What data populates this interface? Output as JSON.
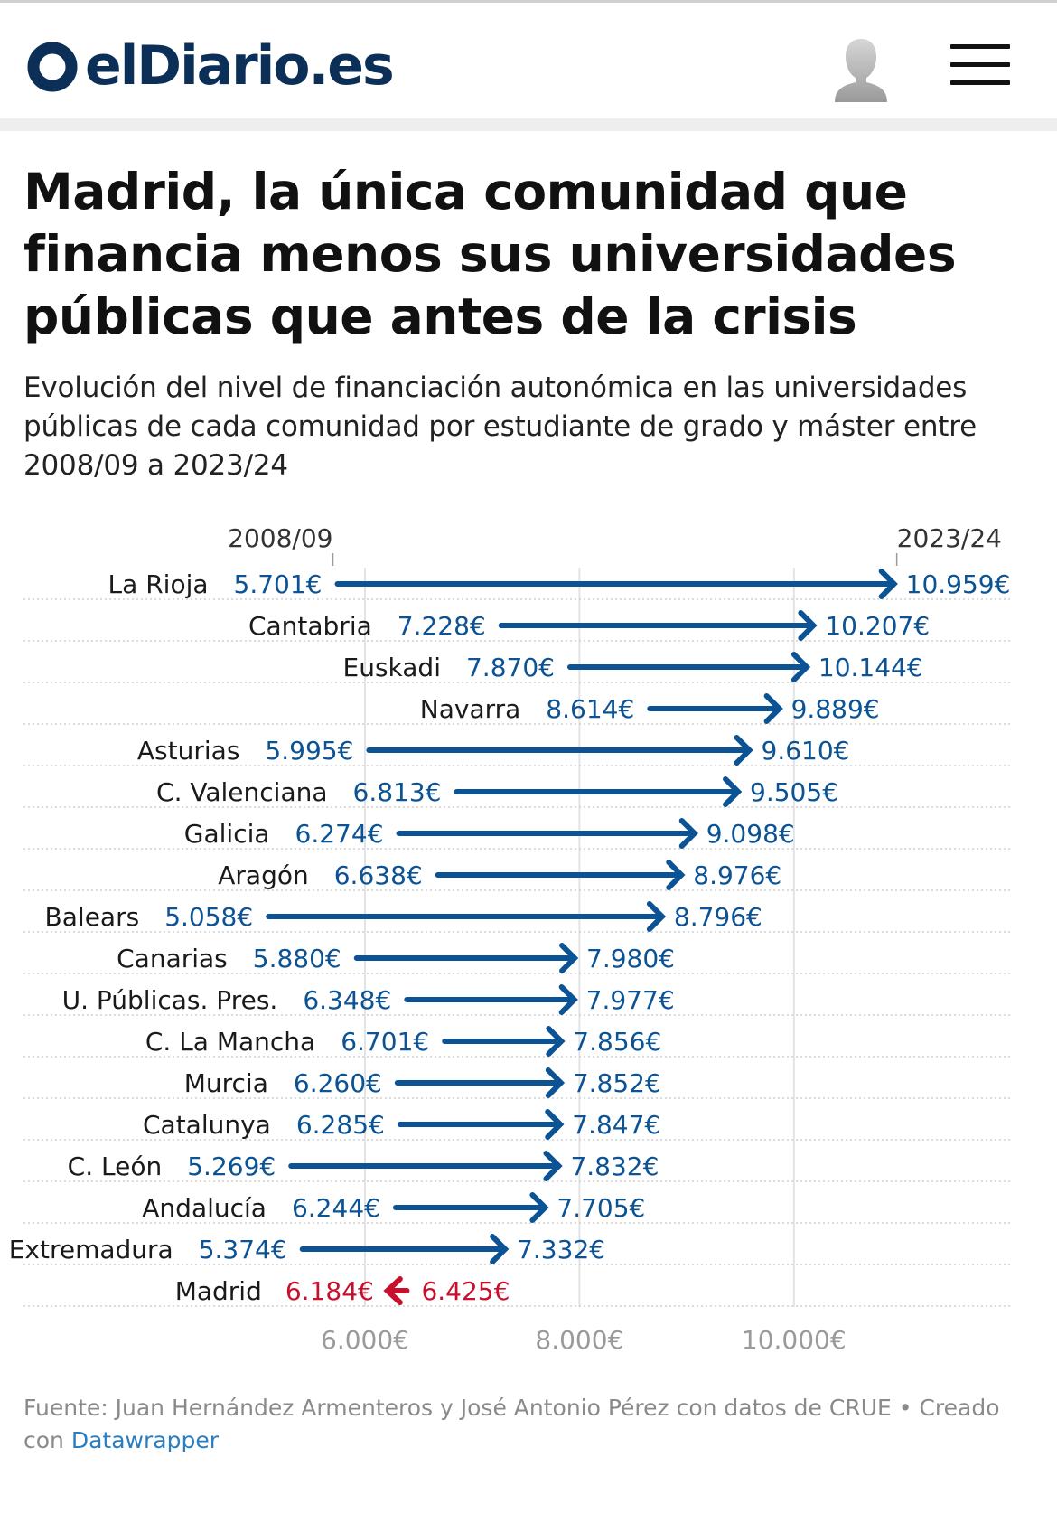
{
  "header": {
    "logo_text": "elDiario.es",
    "logo_icon": "eldiario-logo-icon",
    "avatar_icon": "user-avatar-icon",
    "menu_icon": "hamburger-menu-icon"
  },
  "article": {
    "title": "Madrid, la única comunidad que financia menos sus universidades públicas que antes de la crisis",
    "subtitle": "Evolución del nivel de financiación autonómica en las universidades públicas de cada comunidad por estudiante de grado y máster entre 2008/09 a 2023/24"
  },
  "colors": {
    "blue": "#0b5394",
    "red": "#c8102e",
    "brand": "#0b2f57",
    "grid": "#e3e3e3",
    "dots": "#cfcfcf",
    "axis_text": "#9a9a9a"
  },
  "chart_data": {
    "type": "arrow-plot",
    "start_label": "2008/09",
    "end_label": "2023/24",
    "xlim": [
      5058,
      10959
    ],
    "x_ticks": [
      {
        "value": 6000,
        "label": "6.000€"
      },
      {
        "value": 8000,
        "label": "8.000€"
      },
      {
        "value": 10000,
        "label": "10.000€"
      }
    ],
    "rows": [
      {
        "region": "La Rioja",
        "start": 5701,
        "end": 10959,
        "start_label": "5.701€",
        "end_label": "10.959€"
      },
      {
        "region": "Cantabria",
        "start": 7228,
        "end": 10207,
        "start_label": "7.228€",
        "end_label": "10.207€"
      },
      {
        "region": "Euskadi",
        "start": 7870,
        "end": 10144,
        "start_label": "7.870€",
        "end_label": "10.144€"
      },
      {
        "region": "Navarra",
        "start": 8614,
        "end": 9889,
        "start_label": "8.614€",
        "end_label": "9.889€"
      },
      {
        "region": "Asturias",
        "start": 5995,
        "end": 9610,
        "start_label": "5.995€",
        "end_label": "9.610€"
      },
      {
        "region": "C. Valenciana",
        "start": 6813,
        "end": 9505,
        "start_label": "6.813€",
        "end_label": "9.505€"
      },
      {
        "region": "Galicia",
        "start": 6274,
        "end": 9098,
        "start_label": "6.274€",
        "end_label": "9.098€"
      },
      {
        "region": "Aragón",
        "start": 6638,
        "end": 8976,
        "start_label": "6.638€",
        "end_label": "8.976€"
      },
      {
        "region": "Balears",
        "start": 5058,
        "end": 8796,
        "start_label": "5.058€",
        "end_label": "8.796€"
      },
      {
        "region": "Canarias",
        "start": 5880,
        "end": 7980,
        "start_label": "5.880€",
        "end_label": "7.980€"
      },
      {
        "region": "U. Públicas. Pres.",
        "start": 6348,
        "end": 7977,
        "start_label": "6.348€",
        "end_label": "7.977€"
      },
      {
        "region": "C. La Mancha",
        "start": 6701,
        "end": 7856,
        "start_label": "6.701€",
        "end_label": "7.856€"
      },
      {
        "region": "Murcia",
        "start": 6260,
        "end": 7852,
        "start_label": "6.260€",
        "end_label": "7.852€"
      },
      {
        "region": "Catalunya",
        "start": 6285,
        "end": 7847,
        "start_label": "6.285€",
        "end_label": "7.847€"
      },
      {
        "region": "C. León",
        "start": 5269,
        "end": 7832,
        "start_label": "5.269€",
        "end_label": "7.832€"
      },
      {
        "region": "Andalucía",
        "start": 6244,
        "end": 7705,
        "start_label": "6.244€",
        "end_label": "7.705€"
      },
      {
        "region": "Extremadura",
        "start": 5374,
        "end": 7332,
        "start_label": "5.374€",
        "end_label": "7.332€"
      },
      {
        "region": "Madrid",
        "start": 6425,
        "end": 6184,
        "start_label": "6.425€",
        "end_label": "6.184€",
        "decrease": true
      }
    ]
  },
  "footer": {
    "source_text": "Fuente: Juan Hernández Armenteros y José Antonio Pérez con datos de CRUE • Creado con ",
    "link_text": "Datawrapper"
  }
}
